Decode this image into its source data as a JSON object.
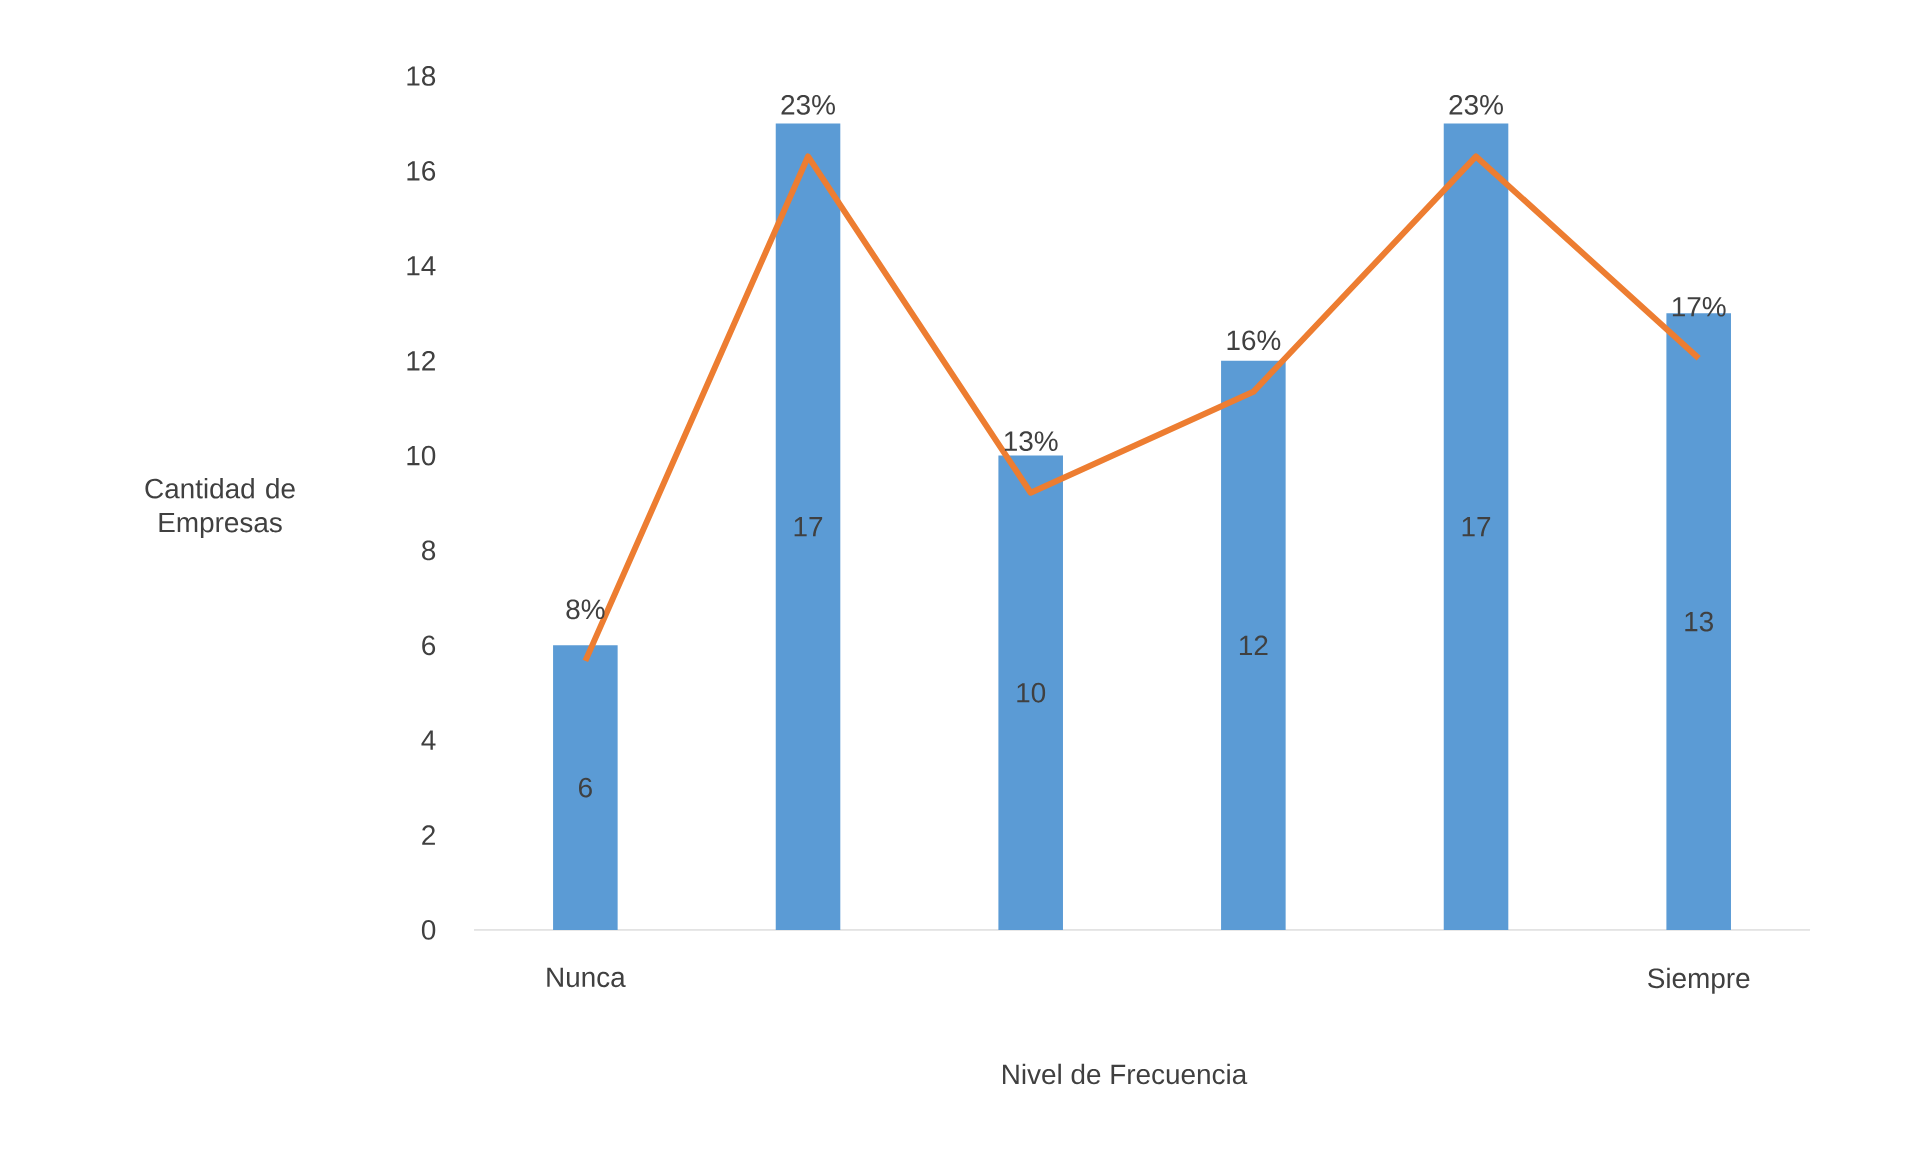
{
  "chart_data": {
    "type": "bar",
    "xlabel": "Nivel de Frecuencia",
    "ylabel": "Cantidad de Empresas",
    "categories": [
      "Nunca",
      null,
      null,
      null,
      null,
      "Siempre"
    ],
    "series": [
      {
        "color": "#5b9bd5",
        "values": [
          6,
          17,
          10,
          12,
          17,
          13
        ],
        "value_labels": [
          "6",
          "17",
          "10",
          "12",
          "17",
          "13"
        ]
      },
      {
        "type": "line",
        "axis": "y2",
        "color": "#ed7d31",
        "values": [
          8,
          23,
          13,
          16,
          23,
          17
        ],
        "value_labels": [
          "8%",
          "23%",
          "13%",
          "16%",
          "23%",
          "17%"
        ]
      }
    ],
    "ylim": [
      0,
      18
    ],
    "yticks": [
      0,
      2,
      4,
      6,
      8,
      10,
      12,
      14,
      16,
      18
    ],
    "grid": false,
    "marker": "none",
    "line_style": "solid"
  }
}
